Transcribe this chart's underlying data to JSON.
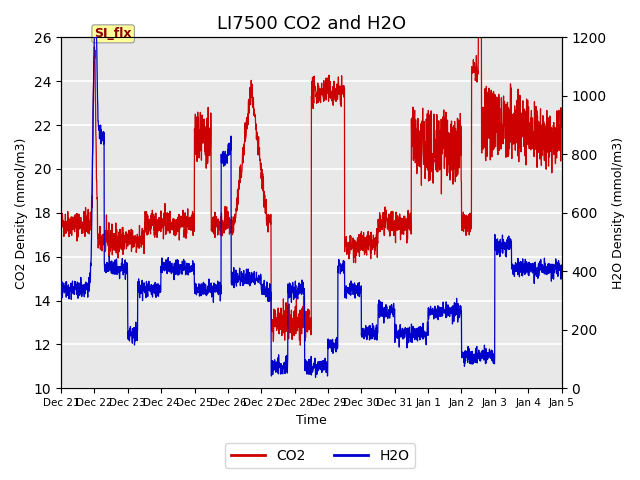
{
  "title": "LI7500 CO2 and H2O",
  "xlabel": "Time",
  "ylabel_left": "CO2 Density (mmol/m3)",
  "ylabel_right": "H2O Density (mmol/m3)",
  "ylim_left": [
    10,
    26
  ],
  "ylim_right": [
    0,
    1200
  ],
  "yticks_left": [
    10,
    12,
    14,
    16,
    18,
    20,
    22,
    24,
    26
  ],
  "yticks_right": [
    0,
    200,
    400,
    600,
    800,
    1000,
    1200
  ],
  "xtick_labels": [
    "Dec 21",
    "Dec 22",
    "Dec 23",
    "Dec 24",
    "Dec 25",
    "Dec 26",
    "Dec 27",
    "Dec 28",
    "Dec 29",
    "Dec 30",
    "Dec 31",
    "Jan 1",
    "Jan 2",
    "Jan 3",
    "Jan 4",
    "Jan 5"
  ],
  "annotation_text": "SI_flx",
  "co2_color": "#cc0000",
  "h2o_color": "#0000cc",
  "background_color": "#e8e8e8",
  "legend_co2": "CO2",
  "legend_h2o": "H2O",
  "title_fontsize": 13
}
